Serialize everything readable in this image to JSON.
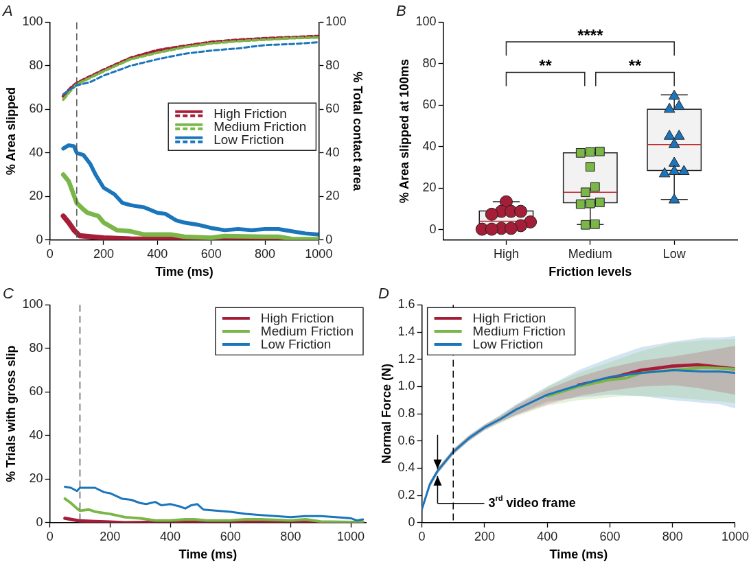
{
  "chart_data": [
    {
      "type": "line",
      "title": "A",
      "xlabel": "Time (ms)",
      "ylabel": "% Area slipped",
      "y2label": "% Total contact area",
      "xlim": [
        0,
        1000
      ],
      "xticks": [
        0,
        200,
        400,
        600,
        800,
        1000
      ],
      "ylim": [
        0,
        100
      ],
      "yticks": [
        0,
        20,
        40,
        60,
        80,
        100
      ],
      "y2lim": [
        0,
        100
      ],
      "y2ticks": [
        0,
        20,
        40,
        60,
        80,
        100
      ],
      "legend": "right",
      "marker": "none",
      "ref_lines": [
        {
          "axis": "x",
          "value": 100,
          "color": "#555555",
          "line_style": "dashed"
        }
      ],
      "series": [
        {
          "name": "High Friction",
          "color": "#a51d36",
          "line_style": "solid",
          "x": [
            50,
            70,
            90,
            110,
            150,
            200,
            300,
            500,
            700,
            800,
            850,
            900,
            1000
          ],
          "values": [
            11,
            8,
            4.5,
            2,
            1.5,
            1,
            0.5,
            0.3,
            0.5,
            0.5,
            0.8,
            0,
            0
          ]
        },
        {
          "name": "Medium Friction",
          "color": "#7ab648",
          "line_style": "solid",
          "x": [
            50,
            70,
            100,
            125,
            140,
            180,
            200,
            250,
            300,
            350,
            400,
            450,
            500,
            600,
            650,
            800,
            850,
            900,
            1000
          ],
          "values": [
            30,
            27,
            17,
            14,
            12.5,
            11,
            8,
            4.5,
            4,
            2.5,
            2.5,
            2.5,
            1.5,
            1,
            1.8,
            1.5,
            1.5,
            0.5,
            0.3
          ]
        },
        {
          "name": "Low Friction",
          "color": "#1a75bb",
          "line_style": "solid",
          "x": [
            50,
            70,
            90,
            100,
            125,
            150,
            170,
            200,
            240,
            270,
            300,
            350,
            400,
            430,
            470,
            500,
            550,
            600,
            650,
            700,
            750,
            800,
            850,
            900,
            950,
            1000
          ],
          "values": [
            42,
            43.5,
            43,
            40,
            39,
            35,
            30,
            24,
            21,
            17,
            16,
            15,
            12.5,
            12,
            9,
            8,
            7,
            5.5,
            4.5,
            5,
            4.5,
            5,
            5,
            4,
            3,
            2.5
          ]
        },
        {
          "color": "#a51d36",
          "line_style": "dashed",
          "axis": "y2",
          "x": [
            50,
            80,
            100,
            150,
            200,
            300,
            400,
            500,
            600,
            700,
            800,
            900,
            1000
          ],
          "values": [
            66,
            70,
            72,
            75,
            78,
            83.5,
            87,
            89,
            90.8,
            91.8,
            92.5,
            93,
            93.5
          ]
        },
        {
          "color": "#7ab648",
          "line_style": "dashed",
          "axis": "y2",
          "x": [
            50,
            80,
            100,
            150,
            200,
            300,
            400,
            500,
            600,
            700,
            800,
            900,
            1000
          ],
          "values": [
            64.5,
            69,
            71.5,
            74.5,
            77.5,
            83,
            86,
            88.5,
            90.3,
            91.3,
            92,
            92.7,
            93
          ]
        },
        {
          "color": "#1a75bb",
          "line_style": "dashed",
          "axis": "y2",
          "x": [
            50,
            80,
            100,
            150,
            200,
            300,
            400,
            500,
            600,
            700,
            800,
            900,
            1000
          ],
          "values": [
            67,
            69.5,
            71,
            72.5,
            75.5,
            80,
            83,
            85.5,
            87,
            88,
            89.5,
            90,
            90.8
          ]
        }
      ]
    },
    {
      "type": "box",
      "title": "B",
      "xlabel": "Friction levels",
      "ylabel": "% Area slipped at 100ms",
      "categories": [
        "High",
        "Medium",
        "Low"
      ],
      "color": "#f2f2f2",
      "ylim": [
        -5,
        100
      ],
      "yticks": [
        0,
        20,
        40,
        60,
        80,
        100
      ],
      "boxes": [
        {
          "low": 1,
          "q1": 1.5,
          "median": 4,
          "q3": 9,
          "high": 13.5
        },
        {
          "low": 2.5,
          "q1": 13,
          "median": 18,
          "q3": 37,
          "high": 37
        },
        {
          "low": 14.5,
          "q1": 28.5,
          "median": 41,
          "q3": 58,
          "high": 65
        }
      ],
      "annotations": [
        "****",
        "**",
        "**"
      ],
      "series": [
        {
          "type": "scatter",
          "color": "#a51d36",
          "marker": "circle",
          "x": [
            "High",
            "High",
            "High",
            "High",
            "High",
            "High",
            "High",
            "High",
            "High",
            "High",
            "High"
          ],
          "values": [
            13.4,
            8.8,
            8.8,
            8.8,
            7.4,
            3.7,
            1.9,
            0.6,
            0.6,
            0.2,
            0.2
          ]
        },
        {
          "type": "scatter",
          "color": "#7ab648",
          "marker": "square",
          "x": [
            "Medium",
            "Medium",
            "Medium",
            "Medium",
            "Medium",
            "Medium",
            "Medium",
            "Medium",
            "Medium",
            "Medium",
            "Medium"
          ],
          "values": [
            37.7,
            37,
            37.5,
            30.3,
            20.6,
            18,
            12.6,
            13.1,
            12.3,
            2.3,
            2.6
          ]
        },
        {
          "type": "scatter",
          "color": "#1a75bb",
          "marker": "triangle",
          "x": [
            "Low",
            "Low",
            "Low",
            "Low",
            "Low",
            "Low",
            "Low",
            "Low",
            "Low",
            "Low",
            "Low"
          ],
          "values": [
            64.3,
            59.4,
            58,
            45,
            45,
            41,
            32,
            28,
            28,
            26.9,
            14.3
          ]
        }
      ]
    },
    {
      "type": "line",
      "title": "C",
      "xlabel": "Time (ms)",
      "ylabel": "% Trials with gross slip",
      "xlim": [
        0,
        1050
      ],
      "xticks": [
        0,
        200,
        400,
        600,
        800,
        1000
      ],
      "ylim": [
        0,
        100
      ],
      "yticks": [
        0,
        20,
        40,
        60,
        80,
        100
      ],
      "legend": "top right",
      "marker": "none",
      "ref_lines": [
        {
          "axis": "x",
          "value": 100,
          "color": "#555555",
          "line_style": "dashed"
        }
      ],
      "series": [
        {
          "name": "High Friction",
          "color": "#a51d36",
          "x": [
            50,
            100,
            150,
            200,
            250,
            400,
            600,
            700,
            800,
            850,
            900,
            1040
          ],
          "values": [
            2,
            0.8,
            0.5,
            0.3,
            0,
            0.3,
            0,
            0.5,
            0.5,
            0.8,
            0,
            0
          ]
        },
        {
          "name": "Medium Friction",
          "color": "#7ab648",
          "x": [
            50,
            70,
            90,
            100,
            130,
            150,
            200,
            250,
            300,
            350,
            400,
            450,
            480,
            520,
            600,
            650,
            700,
            800,
            850,
            900,
            1000,
            1040
          ],
          "values": [
            11,
            9,
            6.5,
            5.5,
            6,
            5,
            4,
            2.5,
            2,
            1,
            1,
            1.5,
            1.5,
            1,
            1,
            1.5,
            1.5,
            1,
            1.5,
            0.5,
            0.3,
            0.5
          ]
        },
        {
          "name": "Low Friction",
          "color": "#1a75bb",
          "x": [
            50,
            70,
            90,
            100,
            150,
            180,
            200,
            240,
            270,
            300,
            320,
            350,
            370,
            400,
            430,
            450,
            470,
            490,
            510,
            550,
            600,
            650,
            700,
            750,
            800,
            850,
            900,
            950,
            1000,
            1020,
            1040
          ],
          "values": [
            16.5,
            16,
            14.5,
            16,
            16,
            14,
            13.5,
            11,
            10.5,
            9,
            8.5,
            9.5,
            8,
            8.5,
            7.5,
            6.5,
            8,
            8.5,
            6,
            5.5,
            5,
            4,
            3.5,
            3,
            2.5,
            3,
            3,
            2.5,
            2,
            1,
            1.5
          ]
        }
      ]
    },
    {
      "type": "line",
      "title": "D",
      "xlabel": "Time (ms)",
      "ylabel": "Normal Force (N)",
      "xlim": [
        0,
        1000
      ],
      "xticks": [
        0,
        200,
        400,
        600,
        800,
        1000
      ],
      "ylim": [
        0,
        1.6
      ],
      "yticks": [
        0,
        0.2,
        0.4,
        0.6,
        0.8,
        {
          "value": 1,
          "label": "1.0"
        },
        1.2,
        1.4,
        1.6
      ],
      "legend": "top left",
      "marker": "none",
      "ref_lines": [
        {
          "axis": "x",
          "value": 100,
          "color": "#000000",
          "line_style": "dashed"
        }
      ],
      "annotations": [
        "3$^{rd}$ video frame"
      ],
      "series": [
        {
          "name": "High Friction",
          "color": "#a51d36",
          "x": [
            0,
            25,
            50,
            100,
            150,
            200,
            250,
            300,
            400,
            500,
            600,
            700,
            800,
            880,
            1000
          ],
          "values": [
            null,
            null,
            null,
            null,
            null,
            null,
            null,
            null,
            null,
            1.01,
            1.06,
            1.12,
            1.15,
            1.16,
            1.13
          ],
          "lower": [
            0.09,
            0.26,
            0.36,
            0.5,
            0.6,
            0.68,
            0.74,
            0.79,
            0.87,
            0.93,
            0.97,
            1,
            1.01,
            0.99,
            0.94
          ],
          "upper": [
            0.11,
            0.3,
            0.4,
            0.54,
            0.64,
            0.72,
            0.78,
            0.86,
            0.98,
            1.07,
            1.14,
            1.19,
            1.22,
            1.25,
            1.3
          ]
        },
        {
          "name": "Medium Friction",
          "color": "#7ab648",
          "x": [
            0,
            25,
            50,
            100,
            150,
            200,
            250,
            300,
            400,
            500,
            600,
            650,
            700,
            800,
            900,
            1000
          ],
          "values": [
            null,
            null,
            null,
            null,
            null,
            null,
            null,
            null,
            0.93,
            1,
            1.05,
            1.06,
            1.1,
            1.12,
            1.14,
            1.13
          ],
          "lower": [
            0.09,
            0.26,
            0.36,
            0.5,
            0.6,
            0.68,
            0.73,
            0.78,
            0.86,
            0.9,
            0.92,
            0.93,
            0.93,
            0.92,
            0.9,
            0.88
          ],
          "upper": [
            0.11,
            0.3,
            0.4,
            0.54,
            0.64,
            0.72,
            0.79,
            0.86,
            1,
            1.1,
            1.18,
            1.22,
            1.26,
            1.32,
            1.34,
            1.35
          ]
        },
        {
          "name": "Low Friction",
          "color": "#1a75bb",
          "x": [
            0,
            25,
            50,
            100,
            150,
            200,
            250,
            300,
            400,
            500,
            600,
            700,
            800,
            900,
            950,
            1000
          ],
          "values": [
            0.1,
            0.28,
            0.38,
            0.52,
            0.62,
            0.7,
            0.76,
            0.83,
            0.94,
            1.01,
            1.07,
            1.1,
            1.12,
            1.11,
            1.11,
            1.1
          ],
          "lower": [
            0.09,
            0.26,
            0.36,
            0.5,
            0.6,
            0.68,
            0.74,
            0.79,
            0.89,
            0.92,
            0.94,
            0.93,
            0.9,
            0.88,
            0.87,
            0.84
          ],
          "upper": [
            0.11,
            0.3,
            0.4,
            0.54,
            0.64,
            0.72,
            0.79,
            0.87,
            1,
            1.12,
            1.21,
            1.29,
            1.33,
            1.36,
            1.36,
            1.37
          ]
        }
      ]
    }
  ]
}
